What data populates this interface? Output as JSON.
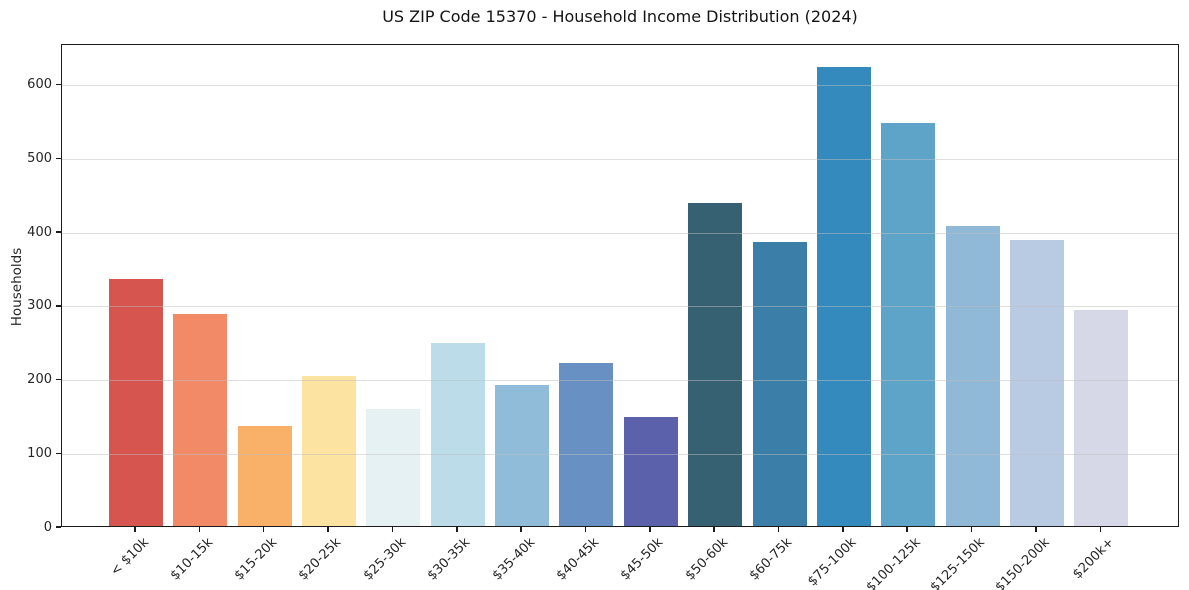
{
  "figure": {
    "background": "#ffffff",
    "text_color": "#262626",
    "spine_color": "#1b1b1b",
    "grid_color": "#e6e6e6"
  },
  "chart_data": {
    "type": "bar",
    "title": "US ZIP Code 15370 - Household Income Distribution (2024)",
    "xlabel": "",
    "ylabel": "Households",
    "categories": [
      "< $10k",
      "$10-15k",
      "$15-20k",
      "$20-25k",
      "$25-30k",
      "$30-35k",
      "$35-40k",
      "$40-45k",
      "$45-50k",
      "$50-60k",
      "$60-75k",
      "$75-100k",
      "$100-125k",
      "$125-150k",
      "$150-200k",
      "$200k+"
    ],
    "values": [
      335,
      288,
      135,
      204,
      159,
      248,
      191,
      221,
      148,
      438,
      385,
      622,
      546,
      407,
      388,
      293
    ],
    "bar_colors": [
      "#d6554f",
      "#f28a68",
      "#f9b169",
      "#fce3a1",
      "#e5f1f2",
      "#bcdcea",
      "#90bcda",
      "#6890c3",
      "#5c61ab",
      "#366173",
      "#3b7ea8",
      "#348abd",
      "#5ea4c8",
      "#90b9d8",
      "#b8cbe2",
      "#d7d8e7"
    ],
    "yticks": [
      0,
      100,
      200,
      300,
      400,
      500,
      600
    ],
    "ylim": [
      0,
      655
    ],
    "grid": "horizontal",
    "legend": "none",
    "x_tick_rotation": 45
  }
}
